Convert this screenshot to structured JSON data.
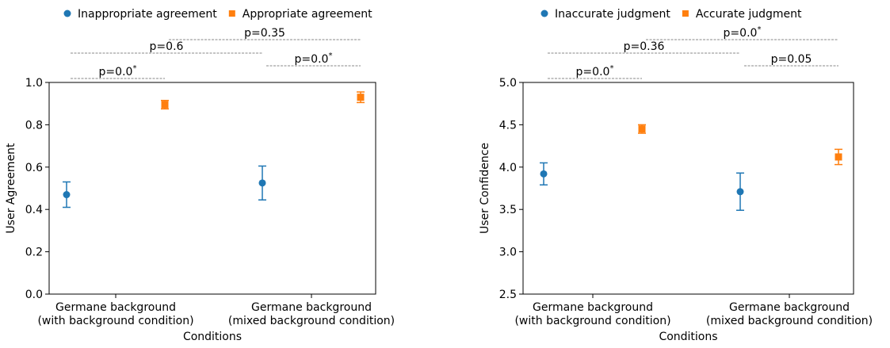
{
  "chart_data": [
    {
      "type": "errorbar",
      "xlabel": "Conditions",
      "ylabel": "User Agreement",
      "categories": [
        [
          "Germane background",
          "(with background condition)"
        ],
        [
          "Germane background",
          "(mixed background condition)"
        ]
      ],
      "series": [
        {
          "name": "Inappropriate agreement",
          "color": "#1f77b4",
          "marker": "circle",
          "values": [
            0.47,
            0.525
          ],
          "errors": [
            0.06,
            0.08
          ]
        },
        {
          "name": "Appropriate agreement",
          "color": "#ff7f0e",
          "marker": "square",
          "values": [
            0.895,
            0.93
          ],
          "errors": [
            0.02,
            0.025
          ]
        }
      ],
      "ylim": [
        0,
        1.0
      ],
      "yticks": [
        {
          "value": 0,
          "label": "0.0"
        },
        0.2,
        0.4,
        0.6,
        0.8,
        {
          "value": 1.0,
          "label": "1.0"
        }
      ],
      "annotations": [
        {
          "text": "p=0.0",
          "sup": "*"
        },
        {
          "text": "p=0.6"
        },
        {
          "text": "p=0.35"
        },
        {
          "text": "p=0.0",
          "sup": "*"
        }
      ]
    },
    {
      "type": "errorbar",
      "xlabel": "Conditions",
      "ylabel": "User Confidence",
      "categories": [
        [
          "Germane background",
          "(with background condition)"
        ],
        [
          "Germane background",
          "(mixed background condition)"
        ]
      ],
      "series": [
        {
          "name": "Inaccurate judgment",
          "color": "#1f77b4",
          "marker": "circle",
          "values": [
            3.92,
            3.71
          ],
          "errors": [
            0.13,
            0.22
          ]
        },
        {
          "name": "Accurate judgment",
          "color": "#ff7f0e",
          "marker": "square",
          "values": [
            4.45,
            4.12
          ],
          "errors": [
            0.05,
            0.09
          ]
        }
      ],
      "ylim": [
        2.5,
        5.0
      ],
      "yticks": [
        2.5,
        {
          "value": 3.0,
          "label": "3.0"
        },
        3.5,
        {
          "value": 4.0,
          "label": "4.0"
        },
        4.5,
        {
          "value": 5.0,
          "label": "5.0"
        }
      ],
      "annotations": [
        {
          "text": "p=0.0",
          "sup": "*"
        },
        {
          "text": "p=0.36"
        },
        {
          "text": "p=0.0",
          "sup": "*"
        },
        {
          "text": "p=0.05"
        }
      ]
    }
  ]
}
